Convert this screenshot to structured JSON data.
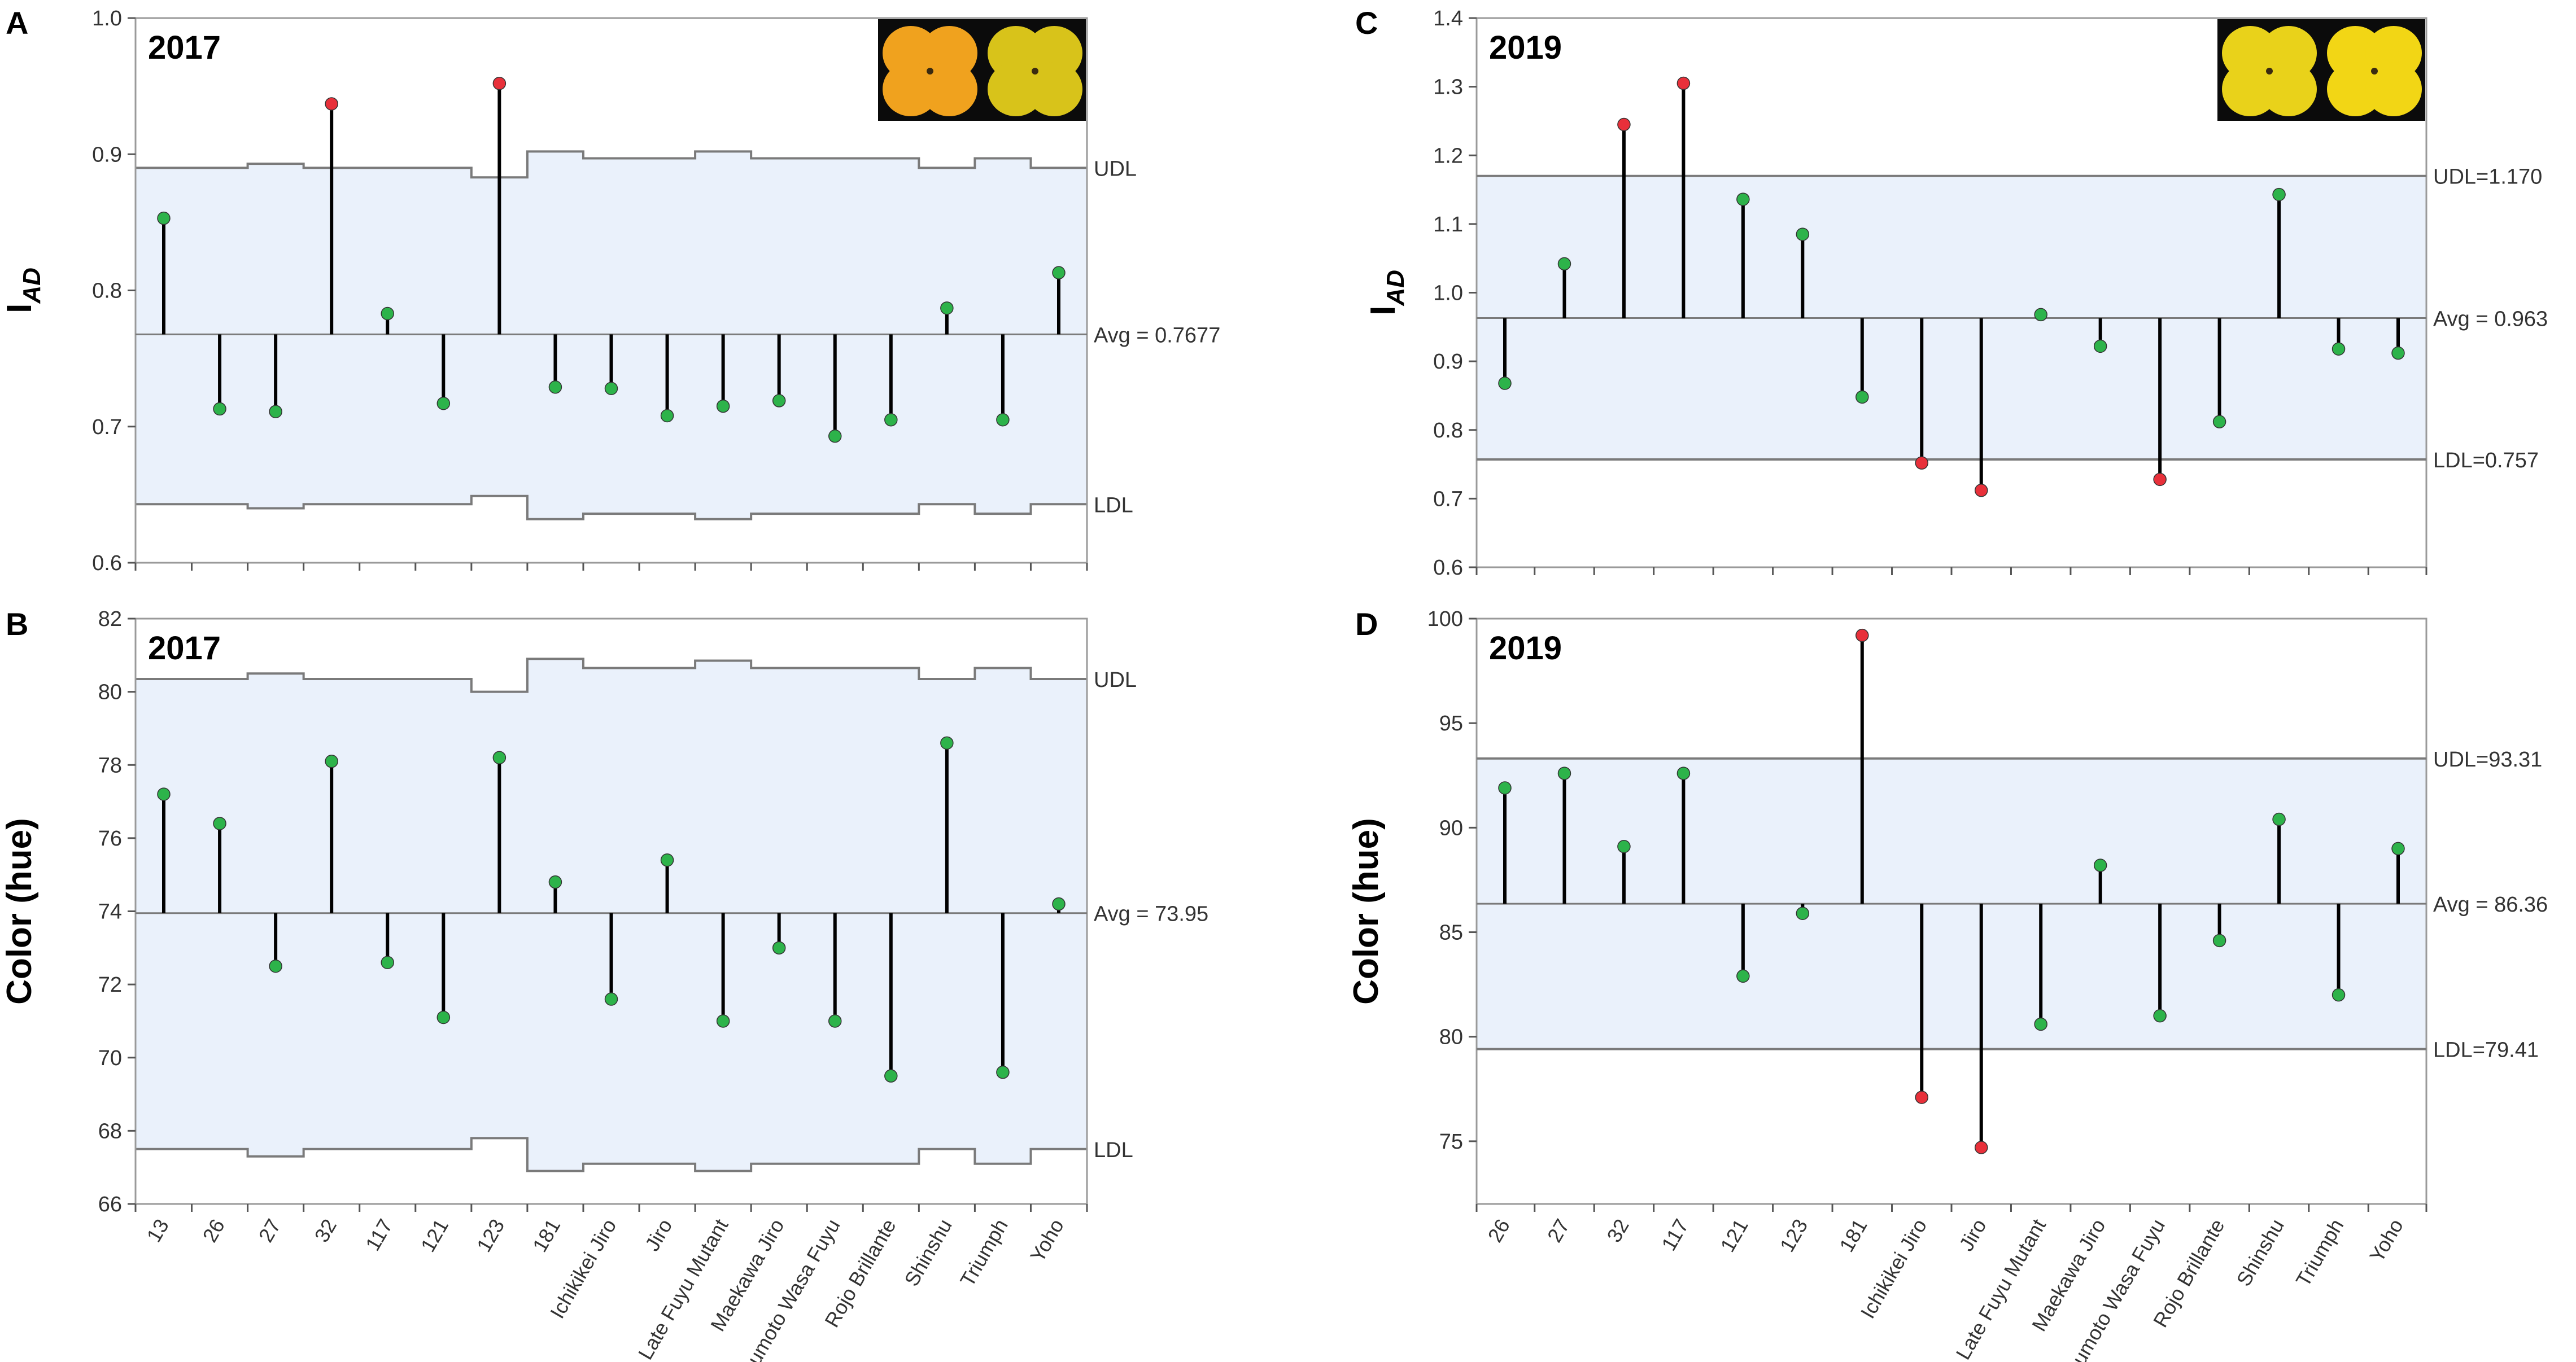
{
  "panels": [
    {
      "id": "A",
      "letter": "A",
      "year": "2017",
      "y_title": "I",
      "y_title_sub": "AD",
      "ylim": [
        0.6,
        1.0
      ],
      "yticks": [
        0.6,
        0.7,
        0.8,
        0.9,
        1.0
      ],
      "ytick_labels": [
        "0.6",
        "0.7",
        "0.8",
        "0.9",
        "1.0"
      ],
      "avg": 0.7677,
      "avg_label": "Avg = 0.7677",
      "limit_mode": "stepped",
      "udl_label": "UDL",
      "ldl_label": "LDL",
      "udl_values": [
        0.89,
        0.89,
        0.893,
        0.89,
        0.89,
        0.89,
        0.883,
        0.902,
        0.897,
        0.897,
        0.902,
        0.897,
        0.897,
        0.897,
        0.89,
        0.897,
        0.89
      ],
      "ldl_values": [
        0.643,
        0.643,
        0.64,
        0.643,
        0.643,
        0.643,
        0.649,
        0.632,
        0.636,
        0.636,
        0.632,
        0.636,
        0.636,
        0.636,
        0.643,
        0.636,
        0.643
      ],
      "categories": [
        "13",
        "26",
        "27",
        "32",
        "117",
        "121",
        "123",
        "181",
        "Ichikikei Jiro",
        "Jiro",
        "Late Fuyu Mutant",
        "Maekawa Jiro",
        "Matsumoto Wasa Fuyu",
        "Rojo Brillante",
        "Shinshu",
        "Triumph",
        "Yoho"
      ],
      "values": [
        0.853,
        0.713,
        0.711,
        0.937,
        0.783,
        0.717,
        0.952,
        0.729,
        0.728,
        0.708,
        0.715,
        0.719,
        0.693,
        0.705,
        0.787,
        0.705,
        0.813
      ],
      "has_photo": true,
      "photo_alt": "fruit-photo-2017"
    },
    {
      "id": "B",
      "letter": "B",
      "year": "2017",
      "y_title": "Color (hue)",
      "y_title_sub": "",
      "ylim": [
        66,
        82
      ],
      "yticks": [
        66,
        68,
        70,
        72,
        74,
        76,
        78,
        80,
        82
      ],
      "ytick_labels": [
        "66",
        "68",
        "70",
        "72",
        "74",
        "76",
        "78",
        "80",
        "82"
      ],
      "avg": 73.95,
      "avg_label": "Avg = 73.95",
      "limit_mode": "stepped",
      "udl_label": "UDL",
      "ldl_label": "LDL",
      "udl_values": [
        80.35,
        80.35,
        80.5,
        80.35,
        80.35,
        80.35,
        80.0,
        80.9,
        80.65,
        80.65,
        80.85,
        80.65,
        80.65,
        80.65,
        80.35,
        80.65,
        80.35
      ],
      "ldl_values": [
        67.5,
        67.5,
        67.3,
        67.5,
        67.5,
        67.5,
        67.8,
        66.9,
        67.1,
        67.1,
        66.9,
        67.1,
        67.1,
        67.1,
        67.5,
        67.1,
        67.5
      ],
      "categories": [
        "13",
        "26",
        "27",
        "32",
        "117",
        "121",
        "123",
        "181",
        "Ichikikei Jiro",
        "Jiro",
        "Late Fuyu Mutant",
        "Maekawa Jiro",
        "Matsumoto Wasa Fuyu",
        "Rojo Brillante",
        "Shinshu",
        "Triumph",
        "Yoho"
      ],
      "values": [
        77.2,
        76.4,
        72.5,
        78.1,
        72.6,
        71.1,
        78.2,
        74.8,
        71.6,
        75.4,
        71.0,
        73.0,
        71.0,
        69.5,
        78.6,
        69.6,
        74.2
      ],
      "has_photo": false,
      "photo_alt": ""
    },
    {
      "id": "C",
      "letter": "C",
      "year": "2019",
      "y_title": "I",
      "y_title_sub": "AD",
      "ylim": [
        0.6,
        1.4
      ],
      "yticks": [
        0.6,
        0.7,
        0.8,
        0.9,
        1.0,
        1.1,
        1.2,
        1.3,
        1.4
      ],
      "ytick_labels": [
        "0.6",
        "0.7",
        "0.8",
        "0.9",
        "1.0",
        "1.1",
        "1.2",
        "1.3",
        "1.4"
      ],
      "avg": 0.963,
      "avg_label": "Avg = 0.963",
      "limit_mode": "flat",
      "udl": 1.17,
      "udl_label": "UDL=1.170",
      "ldl": 0.757,
      "ldl_label": "LDL=0.757",
      "categories": [
        "26",
        "27",
        "32",
        "117",
        "121",
        "123",
        "181",
        "Ichikikei Jiro",
        "Jiro",
        "Late Fuyu Mutant",
        "Maekawa Jiro",
        "Matsumoto Wasa Fuyu",
        "Rojo Brillante",
        "Shinshu",
        "Triumph",
        "Yoho"
      ],
      "values": [
        0.868,
        1.042,
        1.245,
        1.305,
        1.136,
        1.085,
        0.848,
        0.752,
        0.712,
        0.968,
        0.922,
        0.728,
        0.812,
        1.143,
        0.918,
        0.912
      ],
      "has_photo": true,
      "photo_alt": "fruit-photo-2019"
    },
    {
      "id": "D",
      "letter": "D",
      "year": "2019",
      "y_title": "Color (hue)",
      "y_title_sub": "",
      "ylim": [
        72,
        100
      ],
      "yticks": [
        75,
        80,
        85,
        90,
        95,
        100
      ],
      "ytick_labels": [
        "75",
        "80",
        "85",
        "90",
        "95",
        "100"
      ],
      "avg": 86.36,
      "avg_label": "Avg = 86.36",
      "limit_mode": "flat",
      "udl": 93.31,
      "udl_label": "UDL=93.31",
      "ldl": 79.41,
      "ldl_label": "LDL=79.41",
      "categories": [
        "26",
        "27",
        "32",
        "117",
        "121",
        "123",
        "181",
        "Ichikikei Jiro",
        "Jiro",
        "Late Fuyu Mutant",
        "Maekawa Jiro",
        "Matsumoto Wasa Fuyu",
        "Rojo Brillante",
        "Shinshu",
        "Triumph",
        "Yoho"
      ],
      "values": [
        91.9,
        92.6,
        89.1,
        92.6,
        82.9,
        85.9,
        99.2,
        77.1,
        74.7,
        80.6,
        88.2,
        81.0,
        84.6,
        90.4,
        82.0,
        89.0
      ],
      "has_photo": false,
      "photo_alt": ""
    }
  ],
  "colors": {
    "band_fill": "#eaf1fb",
    "frame": "#9a9a9a",
    "limit_line": "#7a7a7a",
    "center_line": "#7a7a7a",
    "in_control": "#2db34a",
    "out_of_control": "#e8303a",
    "stem": "#000000"
  },
  "chart_data": [
    {
      "type": "needle-control-chart",
      "title": "2017",
      "panel": "A",
      "ylabel": "IAD",
      "xlabel": "",
      "ylim": [
        0.6,
        1.0
      ],
      "categories": [
        "13",
        "26",
        "27",
        "32",
        "117",
        "121",
        "123",
        "181",
        "Ichikikei Jiro",
        "Jiro",
        "Late Fuyu Mutant",
        "Maekawa Jiro",
        "Matsumoto Wasa Fuyu",
        "Rojo Brillante",
        "Shinshu",
        "Triumph",
        "Yoho"
      ],
      "values": [
        0.853,
        0.713,
        0.711,
        0.937,
        0.783,
        0.717,
        0.952,
        0.729,
        0.728,
        0.708,
        0.715,
        0.719,
        0.693,
        0.705,
        0.787,
        0.705,
        0.813
      ],
      "center": 0.7677,
      "annotations": [
        "UDL",
        "Avg = 0.7677",
        "LDL"
      ]
    },
    {
      "type": "needle-control-chart",
      "title": "2017",
      "panel": "B",
      "ylabel": "Color (hue)",
      "xlabel": "",
      "ylim": [
        66,
        82
      ],
      "categories": [
        "13",
        "26",
        "27",
        "32",
        "117",
        "121",
        "123",
        "181",
        "Ichikikei Jiro",
        "Jiro",
        "Late Fuyu Mutant",
        "Maekawa Jiro",
        "Matsumoto Wasa Fuyu",
        "Rojo Brillante",
        "Shinshu",
        "Triumph",
        "Yoho"
      ],
      "values": [
        77.2,
        76.4,
        72.5,
        78.1,
        72.6,
        71.1,
        78.2,
        74.8,
        71.6,
        75.4,
        71.0,
        73.0,
        71.0,
        69.5,
        78.6,
        69.6,
        74.2
      ],
      "center": 73.95,
      "annotations": [
        "UDL",
        "Avg = 73.95",
        "LDL"
      ]
    },
    {
      "type": "needle-control-chart",
      "title": "2019",
      "panel": "C",
      "ylabel": "IAD",
      "xlabel": "",
      "ylim": [
        0.6,
        1.4
      ],
      "categories": [
        "26",
        "27",
        "32",
        "117",
        "121",
        "123",
        "181",
        "Ichikikei Jiro",
        "Jiro",
        "Late Fuyu Mutant",
        "Maekawa Jiro",
        "Matsumoto Wasa Fuyu",
        "Rojo Brillante",
        "Shinshu",
        "Triumph",
        "Yoho"
      ],
      "values": [
        0.868,
        1.042,
        1.245,
        1.305,
        1.136,
        1.085,
        0.848,
        0.752,
        0.712,
        0.968,
        0.922,
        0.728,
        0.812,
        1.143,
        0.918,
        0.912
      ],
      "center": 0.963,
      "udl": 1.17,
      "ldl": 0.757,
      "annotations": [
        "UDL=1.170",
        "Avg = 0.963",
        "LDL=0.757"
      ]
    },
    {
      "type": "needle-control-chart",
      "title": "2019",
      "panel": "D",
      "ylabel": "Color (hue)",
      "xlabel": "",
      "ylim": [
        72,
        100
      ],
      "categories": [
        "26",
        "27",
        "32",
        "117",
        "121",
        "123",
        "181",
        "Ichikikei Jiro",
        "Jiro",
        "Late Fuyu Mutant",
        "Maekawa Jiro",
        "Matsumoto Wasa Fuyu",
        "Rojo Brillante",
        "Shinshu",
        "Triumph",
        "Yoho"
      ],
      "values": [
        91.9,
        92.6,
        89.1,
        92.6,
        82.9,
        85.9,
        99.2,
        77.1,
        74.7,
        80.6,
        88.2,
        81.0,
        84.6,
        90.4,
        82.0,
        89.0
      ],
      "center": 86.36,
      "udl": 93.31,
      "ldl": 79.41,
      "annotations": [
        "UDL=93.31",
        "Avg = 86.36",
        "LDL=79.41"
      ]
    }
  ]
}
